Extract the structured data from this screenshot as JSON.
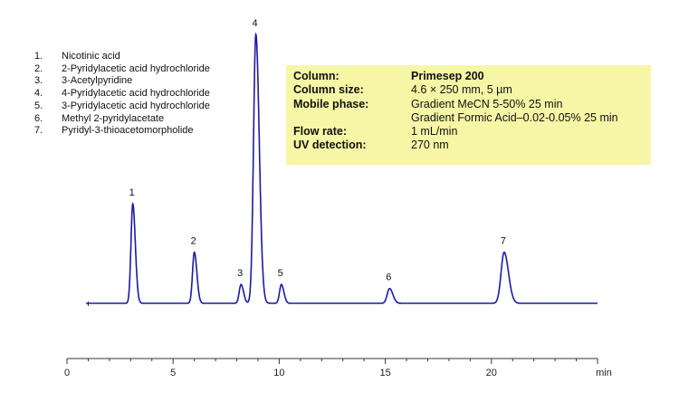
{
  "legend": [
    {
      "num": "1.",
      "name": "Nicotinic acid"
    },
    {
      "num": "2.",
      "name": "2-Pyridylacetic acid hydrochloride"
    },
    {
      "num": "3.",
      "name": "3-Acetylpyridine"
    },
    {
      "num": "4.",
      "name": "4-Pyridylacetic acid hydrochloride"
    },
    {
      "num": "5.",
      "name": "3-Pyridylacetic acid hydrochloride"
    },
    {
      "num": "6.",
      "name": "Methyl 2-pyridylacetate"
    },
    {
      "num": "7.",
      "name": "Pyridyl-3-thioacetomorpholide"
    }
  ],
  "conditions": {
    "column_label": "Column:",
    "column_value": "Primesep 200",
    "size_label": "Column size:",
    "size_value": "4.6 × 250 mm, 5 µm",
    "mobile_label": "Mobile phase:",
    "mobile_value_1": "Gradient MeCN 5-50% 25 min",
    "mobile_value_2": "Gradient Formic Acid–0.02-0.05% 25 min",
    "flow_label": "Flow rate:",
    "flow_value": "1 mL/min",
    "uv_label": "UV detection:",
    "uv_value": "270 nm"
  },
  "chart_data": {
    "type": "line",
    "title": "",
    "xlabel": "min",
    "ylabel": "",
    "xlim": [
      0,
      25
    ],
    "x_ticks": [
      0,
      5,
      10,
      15,
      20
    ],
    "baseline_start": 1.0,
    "line_color": "#1a1aa6",
    "peaks": [
      {
        "label": "1",
        "rt": 3.1,
        "height": 0.37
      },
      {
        "label": "2",
        "rt": 6.0,
        "height": 0.19
      },
      {
        "label": "3",
        "rt": 8.2,
        "height": 0.07
      },
      {
        "label": "4",
        "rt": 8.9,
        "height": 1.0
      },
      {
        "label": "5",
        "rt": 10.1,
        "height": 0.07
      },
      {
        "label": "6",
        "rt": 15.2,
        "height": 0.055
      },
      {
        "label": "7",
        "rt": 20.6,
        "height": 0.19
      }
    ]
  }
}
